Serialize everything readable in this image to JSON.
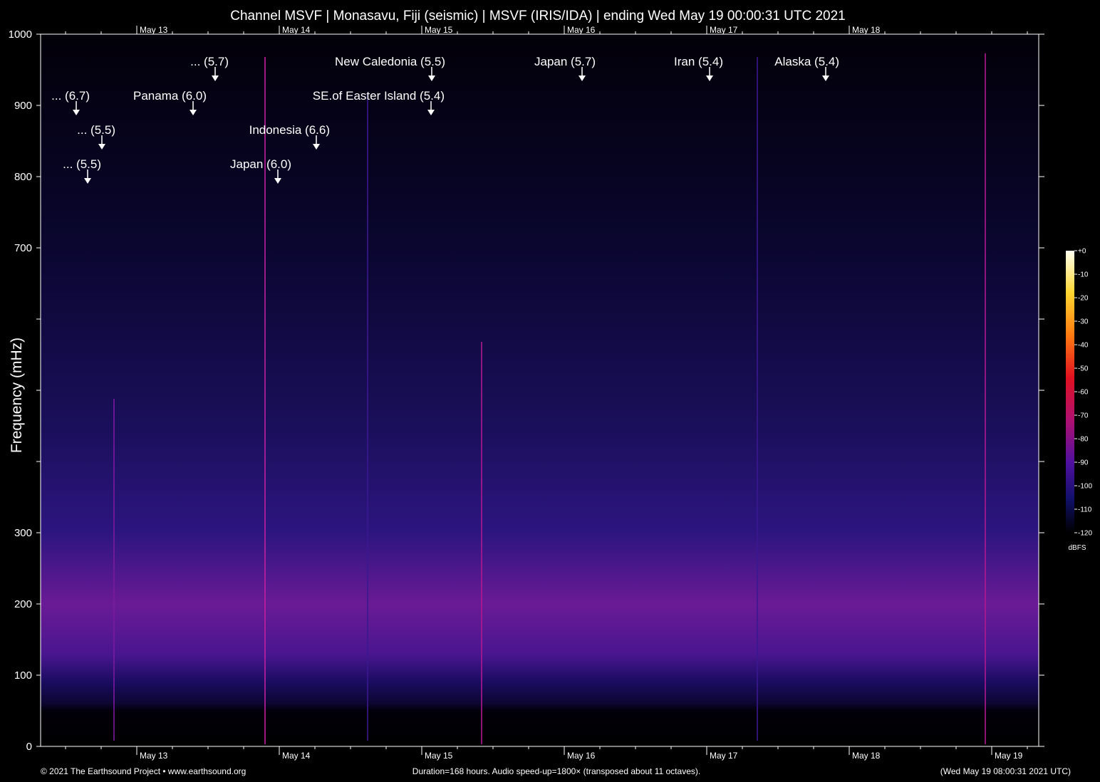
{
  "chart_data": {
    "type": "spectrogram",
    "title": "Channel MSVF | Monasavu, Fiji (seismic) | MSVF (IRIS/IDA) | ending Wed May 19 00:00:31 UTC 2021",
    "y_label": "Frequency (mHz)",
    "xlim": [
      12.325,
      19.33
    ],
    "xticks": [
      {
        "value": 13,
        "label": "May 13"
      },
      {
        "value": 14,
        "label": "May 14"
      },
      {
        "value": 15,
        "label": "May 15"
      },
      {
        "value": 16,
        "label": "May 16"
      },
      {
        "value": 17,
        "label": "May 17"
      },
      {
        "value": 18,
        "label": "May 18"
      },
      {
        "value": 19,
        "label": "May 19"
      }
    ],
    "ylim": [
      0,
      1000
    ],
    "yticks": [
      0,
      100,
      200,
      300,
      700,
      800,
      900,
      1000
    ],
    "y_unlabeled_ticks": [
      400,
      500,
      600
    ],
    "annotations": [
      {
        "text": "... (6.7)",
        "x": 12.575,
        "y": 886
      },
      {
        "text": "... (5.5)",
        "x": 12.755,
        "y": 838
      },
      {
        "text": "... (5.5)",
        "x": 12.655,
        "y": 790
      },
      {
        "text": "... (5.7)",
        "x": 13.55,
        "y": 934
      },
      {
        "text": "Panama (6.0)",
        "x": 13.395,
        "y": 886
      },
      {
        "text": "Indonesia (6.6)",
        "x": 14.26,
        "y": 838
      },
      {
        "text": "Japan (6.0)",
        "x": 13.99,
        "y": 790
      },
      {
        "text": "New Caledonia (5.5)",
        "x": 15.07,
        "y": 934
      },
      {
        "text": "SE.of Easter Island (5.4)",
        "x": 15.065,
        "y": 886
      },
      {
        "text": "Japan (5.7)",
        "x": 16.125,
        "y": 934
      },
      {
        "text": "Iran (5.4)",
        "x": 17.02,
        "y": 934
      },
      {
        "text": "Alaska (5.4)",
        "x": 17.835,
        "y": 934
      }
    ],
    "colorbar": {
      "label": "dBFS",
      "lim": [
        -120,
        0
      ],
      "ticks": [
        {
          "value": 0,
          "label": "+0"
        },
        -10,
        -20,
        -30,
        -40,
        -50,
        -60,
        -70,
        -80,
        -90,
        -100,
        -110,
        -120
      ]
    },
    "footer_left": "© 2021 The Earthsound Project • www.earthsound.org",
    "footer_center": "Duration=168 hours. Audio speed-up=1800× (transposed about 11 octaves).",
    "footer_right": "(Wed May 19 08:00:31 2021 UTC)"
  }
}
